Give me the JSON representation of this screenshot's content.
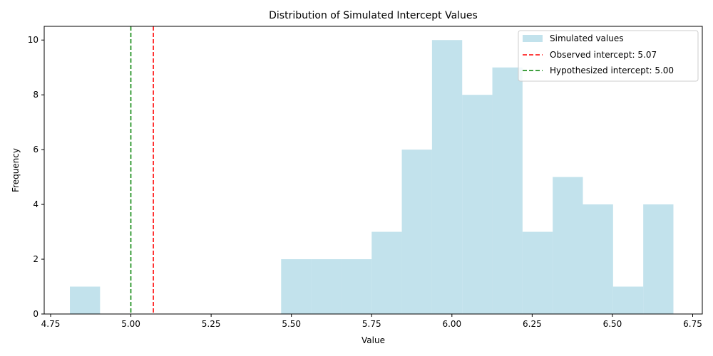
{
  "chart_data": {
    "type": "histogram",
    "title": "Distribution of Simulated Intercept Values",
    "xlabel": "Value",
    "ylabel": "Frequency",
    "xlim": [
      4.73,
      6.78
    ],
    "ylim": [
      0,
      10.5
    ],
    "x_ticks": [
      4.75,
      5.0,
      5.25,
      5.5,
      5.75,
      6.0,
      6.25,
      6.5,
      6.75
    ],
    "x_tick_labels": [
      "4.75",
      "5.00",
      "5.25",
      "5.50",
      "5.75",
      "6.00",
      "6.25",
      "6.50",
      "6.75"
    ],
    "y_ticks": [
      0,
      2,
      4,
      6,
      8,
      10
    ],
    "y_tick_labels": [
      "0",
      "2",
      "4",
      "6",
      "8",
      "10"
    ],
    "grid": false,
    "bin_edges": [
      4.81,
      4.904,
      4.998,
      5.092,
      5.186,
      5.28,
      5.374,
      5.468,
      5.562,
      5.656,
      5.75,
      5.844,
      5.938,
      6.032,
      6.126,
      6.22,
      6.314,
      6.408,
      6.502,
      6.596,
      6.69
    ],
    "counts": [
      1,
      0,
      0,
      0,
      0,
      0,
      0,
      2,
      2,
      2,
      3,
      6,
      10,
      8,
      9,
      3,
      5,
      4,
      1,
      4
    ],
    "bar_color": "#add8e6",
    "bar_alpha": 0.75,
    "series": [
      {
        "name": "Simulated values"
      }
    ],
    "vlines": [
      {
        "x": 5.07,
        "color": "#ff0000",
        "style": "dashed",
        "label": "Observed intercept: 5.07"
      },
      {
        "x": 5.0,
        "color": "#008000",
        "style": "dashed",
        "label": "Hypothesized intercept: 5.00"
      }
    ],
    "legend_position": "top-right"
  }
}
